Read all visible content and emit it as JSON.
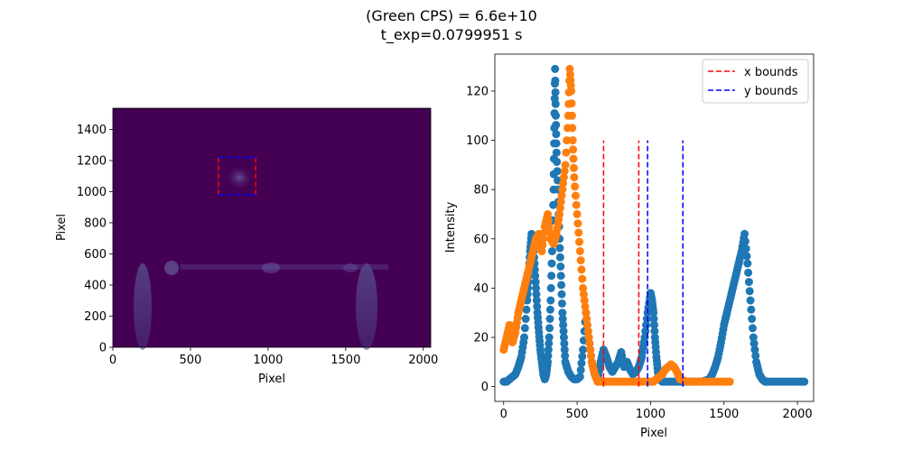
{
  "figure": {
    "title_line1": "(Green CPS) = 6.6e+10",
    "title_line2": "t_exp=0.0799951 s"
  },
  "colors": {
    "image_background": "#440154",
    "series_1": "#1f77b4",
    "series_2": "#ff7f0e",
    "x_bounds": "#ff0000",
    "y_bounds": "#0000ff",
    "spot": "#5a4a8a"
  },
  "chart_data": [
    {
      "type": "heatmap",
      "xlabel": "Pixel",
      "ylabel": "Pixel",
      "xlim": [
        0,
        2048
      ],
      "ylim": [
        0,
        1536
      ],
      "xticks": [
        0,
        500,
        1000,
        1500,
        2000
      ],
      "yticks": [
        0,
        200,
        400,
        600,
        800,
        1000,
        1200,
        1400
      ],
      "colormap": "viridis",
      "bounding_box": {
        "x": [
          680,
          920
        ],
        "y": [
          980,
          1220
        ]
      },
      "grid": false
    },
    {
      "type": "scatter",
      "xlabel": "Pixel",
      "ylabel": "Intensity",
      "xlim": [
        -60,
        2110
      ],
      "ylim": [
        -6,
        135
      ],
      "xticks": [
        0,
        500,
        1000,
        1500,
        2000
      ],
      "yticks": [
        0,
        20,
        40,
        60,
        80,
        100,
        120
      ],
      "grid": false,
      "legend_position": "top-right",
      "legend": [
        {
          "label": "x bounds",
          "color": "#ff0000"
        },
        {
          "label": "y bounds",
          "color": "#0000ff"
        }
      ],
      "vlines": [
        {
          "legend": "x bounds",
          "x": 680,
          "ymin": 0,
          "ymax": 100
        },
        {
          "legend": "x bounds",
          "x": 920,
          "ymin": 0,
          "ymax": 100
        },
        {
          "legend": "y bounds",
          "x": 980,
          "ymin": 0,
          "ymax": 100
        },
        {
          "legend": "y bounds",
          "x": 1220,
          "ymin": 0,
          "ymax": 100
        }
      ],
      "series": [
        {
          "color": "#1f77b4",
          "x": [
            0,
            20,
            40,
            60,
            80,
            100,
            120,
            140,
            160,
            170,
            180,
            190,
            200,
            210,
            220,
            230,
            240,
            250,
            260,
            270,
            280,
            290,
            300,
            310,
            320,
            330,
            340,
            345,
            350,
            355,
            360,
            370,
            380,
            390,
            400,
            410,
            420,
            440,
            460,
            480,
            500,
            520,
            540,
            560,
            580,
            600,
            620,
            640,
            660,
            680,
            700,
            720,
            740,
            760,
            780,
            800,
            820,
            840,
            860,
            880,
            900,
            920,
            940,
            960,
            980,
            1000,
            1010,
            1020,
            1030,
            1040,
            1050,
            1060,
            1080,
            1100,
            1150,
            1200,
            1250,
            1300,
            1350,
            1400,
            1420,
            1440,
            1460,
            1480,
            1500,
            1520,
            1540,
            1560,
            1580,
            1600,
            1620,
            1640,
            1660,
            1680,
            1700,
            1720,
            1740,
            1760,
            1780,
            1800,
            1850,
            1900,
            1950,
            2000,
            2047
          ],
          "y": [
            2,
            2,
            3,
            4,
            5,
            8,
            12,
            20,
            35,
            45,
            55,
            62,
            60,
            50,
            40,
            30,
            22,
            15,
            10,
            5,
            3,
            5,
            10,
            20,
            35,
            55,
            80,
            105,
            129,
            110,
            95,
            80,
            60,
            45,
            30,
            20,
            10,
            6,
            4,
            3,
            3,
            4,
            15,
            30,
            20,
            10,
            5,
            3,
            10,
            15,
            12,
            8,
            6,
            8,
            10,
            14,
            8,
            10,
            7,
            5,
            6,
            8,
            12,
            20,
            30,
            38,
            35,
            30,
            20,
            12,
            6,
            3,
            2,
            2,
            2,
            2,
            2,
            2,
            2,
            3,
            5,
            8,
            12,
            18,
            25,
            30,
            35,
            40,
            45,
            50,
            55,
            62,
            50,
            35,
            20,
            10,
            5,
            3,
            2,
            2,
            2,
            2,
            2,
            2,
            2
          ]
        },
        {
          "color": "#ff7f0e",
          "x": [
            0,
            20,
            40,
            60,
            80,
            100,
            120,
            140,
            160,
            180,
            200,
            220,
            240,
            260,
            280,
            300,
            320,
            340,
            360,
            380,
            400,
            420,
            440,
            450,
            460,
            470,
            480,
            500,
            520,
            540,
            560,
            580,
            600,
            620,
            640,
            680,
            720,
            760,
            800,
            850,
            900,
            950,
            1000,
            1020,
            1040,
            1060,
            1080,
            1100,
            1120,
            1140,
            1160,
            1180,
            1200,
            1250,
            1300,
            1350,
            1400,
            1450,
            1500,
            1540
          ],
          "y": [
            15,
            20,
            25,
            18,
            22,
            30,
            35,
            40,
            45,
            50,
            55,
            60,
            62,
            55,
            65,
            70,
            60,
            58,
            62,
            70,
            80,
            90,
            110,
            129,
            120,
            100,
            85,
            70,
            55,
            40,
            30,
            20,
            10,
            5,
            2,
            2,
            2,
            2,
            2,
            2,
            2,
            2,
            2,
            2,
            3,
            4,
            5,
            7,
            8,
            9,
            8,
            6,
            3,
            2,
            2,
            2,
            2,
            2,
            2,
            2
          ]
        }
      ]
    }
  ]
}
